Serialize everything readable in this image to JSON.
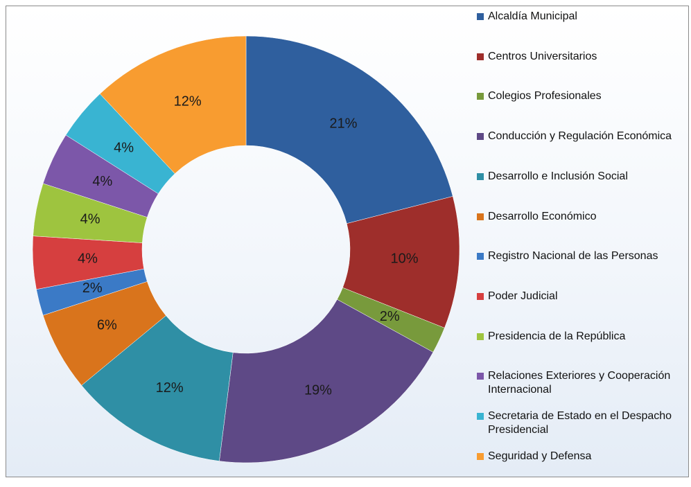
{
  "chart_data": {
    "type": "donut",
    "categories": [
      "Alcaldía Municipal",
      "Centros Universitarios",
      "Colegios Profesionales",
      "Conducción y Regulación Económica",
      "Desarrollo e Inclusión Social",
      "Desarrollo Económico",
      "Registro Nacional de las Personas",
      "Poder Judicial",
      "Presidencia de la República",
      "Relaciones Exteriores y Cooperación Internacional",
      "Secretaria de Estado en el Despacho Presidencial",
      "Seguridad y Defensa"
    ],
    "values": [
      21,
      10,
      2,
      19,
      12,
      6,
      2,
      4,
      4,
      4,
      4,
      12
    ],
    "value_labels": [
      "21%",
      "10%",
      "2%",
      "19%",
      "12%",
      "6%",
      "2%",
      "4%",
      "4%",
      "4%",
      "4%",
      "12%"
    ],
    "colors": [
      "#2f5f9e",
      "#9e2e2b",
      "#789a3c",
      "#5e4986",
      "#2f8fa5",
      "#d9741c",
      "#3b7ac6",
      "#d63f3f",
      "#9ec43f",
      "#7c57a9",
      "#39b4d2",
      "#f89c30"
    ],
    "legend": "right"
  }
}
